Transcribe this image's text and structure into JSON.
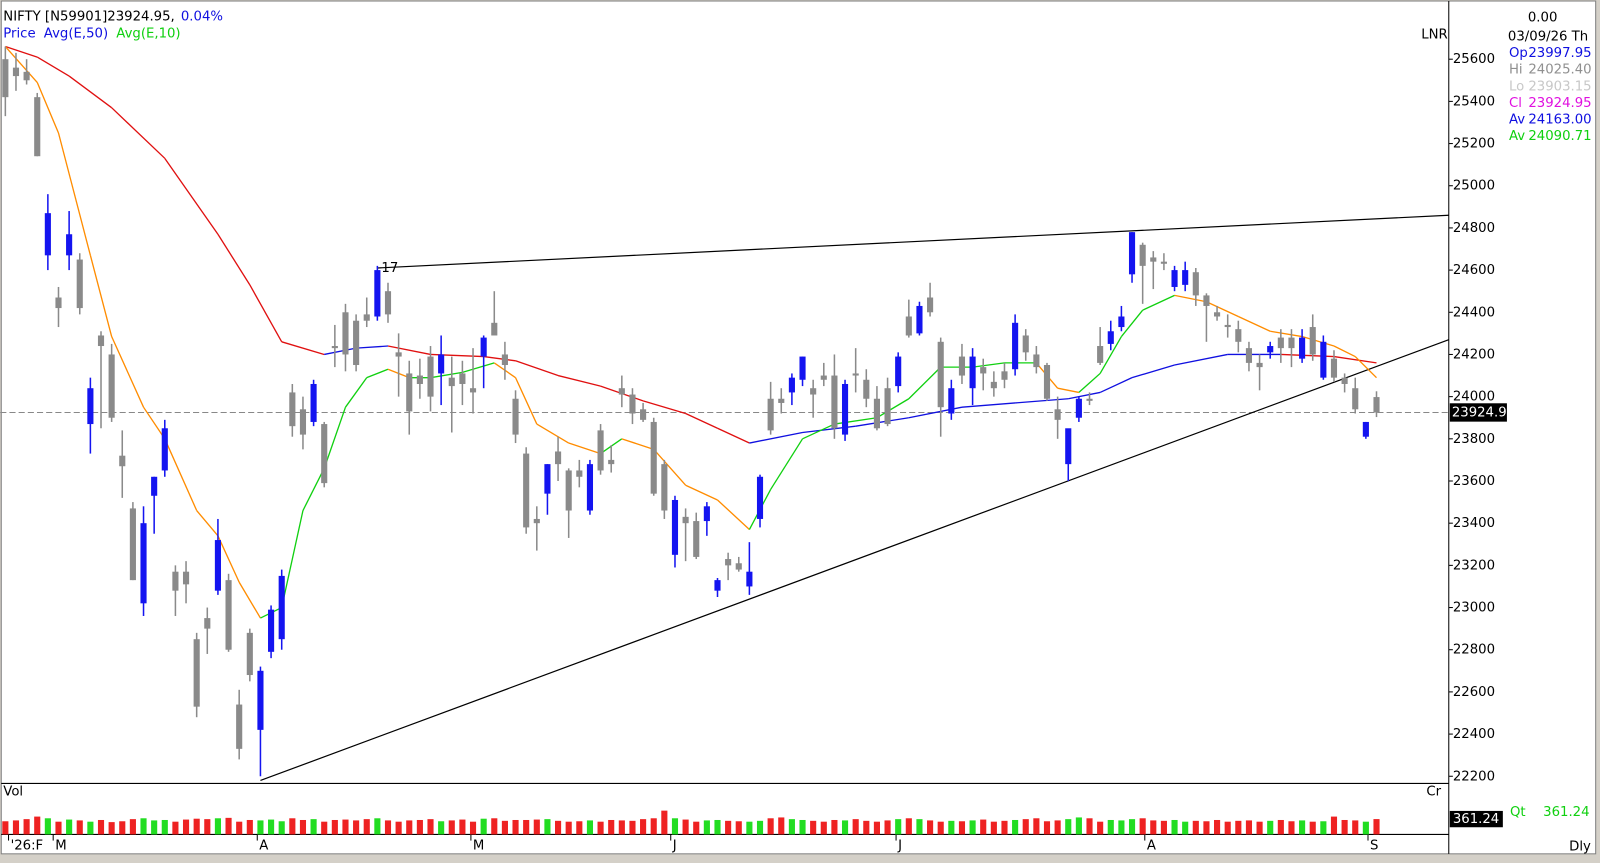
{
  "header": {
    "symbol": "NIFTY [N59901]",
    "price": {
      "value": 23924.95,
      "label": "23924.95,"
    },
    "change": {
      "value": 0.04,
      "label": "0.04%"
    },
    "legend_price": "Price"
  },
  "info_panel": {
    "top": {
      "value": 0,
      "label": "0.00"
    },
    "date": "03/09/26 Th",
    "rows": [
      {
        "label": "Op",
        "value": 23997.95,
        "color": "#1010e0"
      },
      {
        "label": "Hi",
        "value": {
          "value": 24025.4,
          "label": "24025.40"
        },
        "color": "#909090"
      },
      {
        "label": "Lo",
        "value": 23903.15,
        "color": "#c8c8c8"
      },
      {
        "label": "Cl",
        "value": 23924.95,
        "color": "#e010e0"
      },
      {
        "label": "Av",
        "value": {
          "value": 24163,
          "label": "24163.00"
        },
        "color": "#1010e0"
      },
      {
        "label": "Av",
        "value": 24090.71,
        "color": "#10d010"
      }
    ],
    "scale_label": "LNR",
    "vol_scale_label": "Cr",
    "qty_label": "Qt",
    "period": "Dly"
  },
  "chart_data": {
    "type": "candlestick",
    "up_color": "#1414f0",
    "down_color": "#8a8a8a",
    "xlim": [
      -0.48,
      135.8
    ],
    "ylim": [
      22166,
      25842
    ],
    "yticks": [
      22200,
      22400,
      22600,
      22800,
      23000,
      23200,
      23400,
      23600,
      23800,
      24000,
      24200,
      24400,
      24600,
      24800,
      25000,
      25200,
      25400,
      25600
    ],
    "xticks": [
      {
        "value": 0.3,
        "label": "'26:F"
      },
      {
        "value": 4.5,
        "label": "M"
      },
      {
        "value": 23.7,
        "label": "A"
      },
      {
        "value": 43.8,
        "label": "M"
      },
      {
        "value": 62.6,
        "label": "J"
      },
      {
        "value": 83.8,
        "label": "J"
      },
      {
        "value": 107.2,
        "label": "A"
      },
      {
        "value": 128.2,
        "label": "S"
      }
    ],
    "ohlc": [
      [
        25600,
        25660,
        25330,
        25420
      ],
      [
        25560,
        25630,
        25450,
        25520
      ],
      [
        25540,
        25600,
        25480,
        25500
      ],
      [
        25420,
        25440,
        25140,
        25140
      ],
      [
        24670,
        24960,
        24600,
        24870
      ],
      [
        24470,
        24520,
        24330,
        24420
      ],
      [
        24670,
        24880,
        24600,
        24770
      ],
      [
        24650,
        24680,
        24390,
        24420
      ],
      [
        23870,
        24090,
        23730,
        24040
      ],
      [
        24290,
        24310,
        23850,
        24240
      ],
      [
        24200,
        24250,
        23880,
        23900
      ],
      [
        23720,
        23840,
        23520,
        23670
      ],
      [
        23470,
        23500,
        23130,
        23130
      ],
      [
        23020,
        23480,
        22960,
        23400
      ],
      [
        23530,
        23620,
        23350,
        23620
      ],
      [
        23650,
        23890,
        23620,
        23850
      ],
      [
        23170,
        23200,
        22960,
        23080
      ],
      [
        23170,
        23220,
        23020,
        23110
      ],
      [
        22850,
        22880,
        22480,
        22530
      ],
      [
        22950,
        23000,
        22780,
        22900
      ],
      [
        23080,
        23420,
        23060,
        23320
      ],
      [
        23130,
        23160,
        22790,
        22800
      ],
      [
        22540,
        22610,
        22280,
        22330
      ],
      [
        22880,
        22900,
        22650,
        22680
      ],
      [
        22420,
        22720,
        22200,
        22700
      ],
      [
        22790,
        23010,
        22760,
        22990
      ],
      [
        22850,
        23180,
        22800,
        23150
      ],
      [
        24020,
        24060,
        23810,
        23860
      ],
      [
        23940,
        24000,
        23750,
        23820
      ],
      [
        23880,
        24080,
        23860,
        24060
      ],
      [
        23870,
        23880,
        23570,
        23590
      ],
      [
        24240,
        24340,
        24140,
        24230
      ],
      [
        24400,
        24440,
        24120,
        24200
      ],
      [
        24360,
        24390,
        24120,
        24150
      ],
      [
        24390,
        24470,
        24330,
        24360
      ],
      [
        24380,
        24620,
        24360,
        24600
      ],
      [
        24500,
        24540,
        24350,
        24390
      ],
      [
        24210,
        24300,
        24000,
        24190
      ],
      [
        24110,
        24170,
        23820,
        23930
      ],
      [
        24100,
        24180,
        23990,
        24060
      ],
      [
        24190,
        24240,
        23930,
        24000
      ],
      [
        24110,
        24290,
        23960,
        24200
      ],
      [
        24090,
        24190,
        23830,
        24050
      ],
      [
        24110,
        24170,
        23960,
        24060
      ],
      [
        24040,
        24230,
        23920,
        24020
      ],
      [
        24190,
        24290,
        24040,
        24280
      ],
      [
        24350,
        24500,
        24310,
        24290
      ],
      [
        24200,
        24260,
        24080,
        24150
      ],
      [
        23990,
        24030,
        23780,
        23820
      ],
      [
        23730,
        23760,
        23350,
        23380
      ],
      [
        23420,
        23480,
        23270,
        23400
      ],
      [
        23540,
        23680,
        23440,
        23680
      ],
      [
        23740,
        23810,
        23600,
        23680
      ],
      [
        23650,
        23660,
        23330,
        23460
      ],
      [
        23650,
        23700,
        23570,
        23620
      ],
      [
        23460,
        23700,
        23440,
        23680
      ],
      [
        23840,
        23870,
        23630,
        23650
      ],
      [
        23700,
        23770,
        23640,
        23680
      ],
      [
        24040,
        24100,
        23950,
        24010
      ],
      [
        24010,
        24040,
        23870,
        23920
      ],
      [
        23940,
        23970,
        23880,
        23890
      ],
      [
        23880,
        23900,
        23530,
        23540
      ],
      [
        23680,
        23700,
        23420,
        23460
      ],
      [
        23250,
        23530,
        23190,
        23510
      ],
      [
        23430,
        23470,
        23220,
        23400
      ],
      [
        23410,
        23450,
        23230,
        23240
      ],
      [
        23410,
        23500,
        23340,
        23480
      ],
      [
        23080,
        23140,
        23050,
        23130
      ],
      [
        23230,
        23260,
        23130,
        23200
      ],
      [
        23210,
        23240,
        23170,
        23180
      ],
      [
        23100,
        23310,
        23060,
        23170
      ],
      [
        23420,
        23630,
        23380,
        23620
      ],
      [
        23990,
        24070,
        23820,
        23840
      ],
      [
        23990,
        24040,
        23920,
        23970
      ],
      [
        24020,
        24110,
        23960,
        24090
      ],
      [
        24080,
        24190,
        24050,
        24190
      ],
      [
        24040,
        24080,
        23900,
        24010
      ],
      [
        24100,
        24160,
        24050,
        24080
      ],
      [
        24100,
        24200,
        23800,
        23850
      ],
      [
        23820,
        24080,
        23790,
        24060
      ],
      [
        24110,
        24230,
        24020,
        24100
      ],
      [
        24080,
        24130,
        23950,
        23990
      ],
      [
        23990,
        24050,
        23840,
        23850
      ],
      [
        24040,
        24090,
        23860,
        23870
      ],
      [
        24050,
        24210,
        24020,
        24190
      ],
      [
        24380,
        24460,
        24280,
        24290
      ],
      [
        24300,
        24450,
        24290,
        24430
      ],
      [
        24470,
        24540,
        24380,
        24400
      ],
      [
        24260,
        24280,
        23810,
        23950
      ],
      [
        23920,
        24080,
        23890,
        24040
      ],
      [
        24190,
        24250,
        24060,
        24100
      ],
      [
        24040,
        24230,
        23960,
        24190
      ],
      [
        24140,
        24180,
        24030,
        24110
      ],
      [
        24070,
        24120,
        24000,
        24040
      ],
      [
        24120,
        24160,
        24040,
        24080
      ],
      [
        24130,
        24390,
        24100,
        24350
      ],
      [
        24290,
        24320,
        24170,
        24210
      ],
      [
        24200,
        24240,
        24110,
        24140
      ],
      [
        24150,
        24160,
        23980,
        23990
      ],
      [
        23940,
        24000,
        23800,
        23890
      ],
      [
        23680,
        23820,
        23600,
        23850
      ],
      [
        23900,
        24000,
        23880,
        23990
      ],
      [
        23990,
        24020,
        23960,
        23980
      ],
      [
        24240,
        24330,
        24150,
        24160
      ],
      [
        24250,
        24360,
        24220,
        24310
      ],
      [
        24330,
        24430,
        24310,
        24380
      ],
      [
        24580,
        24780,
        24540,
        24780
      ],
      [
        24720,
        24730,
        24440,
        24620
      ],
      [
        24660,
        24690,
        24510,
        24640
      ],
      [
        24640,
        24680,
        24600,
        24630
      ],
      [
        24520,
        24620,
        24500,
        24600
      ],
      [
        24530,
        24640,
        24500,
        24600
      ],
      [
        24590,
        24610,
        24430,
        24480
      ],
      [
        24480,
        24490,
        24260,
        24430
      ],
      [
        24400,
        24430,
        24360,
        24380
      ],
      [
        24340,
        24390,
        24280,
        24330
      ],
      [
        24320,
        24360,
        24210,
        24260
      ],
      [
        24230,
        24260,
        24120,
        24160
      ],
      [
        24160,
        24200,
        24030,
        24140
      ],
      [
        24210,
        24260,
        24180,
        24240
      ],
      [
        24280,
        24320,
        24160,
        24230
      ],
      [
        24280,
        24320,
        24140,
        24230
      ],
      [
        24180,
        24320,
        24160,
        24280
      ],
      [
        24330,
        24390,
        24170,
        24200
      ],
      [
        24090,
        24290,
        24080,
        24260
      ],
      [
        24180,
        24220,
        24070,
        24090
      ],
      [
        24090,
        24110,
        24020,
        24060
      ],
      [
        24040,
        24090,
        23920,
        23940
      ],
      [
        23810,
        23880,
        23800,
        23880
      ],
      [
        23997.95,
        24025.4,
        23903.15,
        23924.95
      ]
    ],
    "series": [
      {
        "name": "Avg(E,50)",
        "color": "#1010e0",
        "falling_color": "#e01010",
        "x": [
          0,
          3,
          6,
          10,
          15,
          20,
          23,
          26,
          30,
          33,
          36,
          40,
          45,
          48,
          52,
          56,
          60,
          64,
          67,
          70,
          75,
          80,
          85,
          90,
          95,
          100,
          103,
          106,
          110,
          115,
          120,
          125,
          129
        ],
        "values": [
          25660,
          25610,
          25520,
          25370,
          25130,
          24770,
          24530,
          24260,
          24200,
          24230,
          24240,
          24200,
          24190,
          24170,
          24100,
          24050,
          23980,
          23920,
          23850,
          23780,
          23830,
          23860,
          23900,
          23950,
          23970,
          23990,
          24020,
          24090,
          24150,
          24200,
          24200,
          24190,
          24160
        ]
      },
      {
        "name": "Avg(E,10)",
        "color": "#10d010",
        "falling_color": "#ff8c00",
        "x": [
          0,
          3,
          5,
          8,
          10,
          13,
          15,
          18,
          20,
          22,
          24,
          26,
          28,
          30,
          32,
          34,
          36,
          38,
          40,
          43,
          46,
          48,
          50,
          53,
          56,
          58,
          61,
          64,
          67,
          70,
          72,
          75,
          78,
          82,
          85,
          88,
          91,
          94,
          97,
          99,
          101,
          103,
          105,
          107,
          110,
          113,
          116,
          119,
          122,
          125,
          127,
          129
        ],
        "values": [
          25660,
          25490,
          25250,
          24670,
          24285,
          23950,
          23800,
          23460,
          23340,
          23120,
          22950,
          23000,
          23460,
          23660,
          23950,
          24090,
          24130,
          24090,
          24090,
          24115,
          24160,
          24090,
          23870,
          23780,
          23730,
          23800,
          23750,
          23580,
          23510,
          23370,
          23560,
          23800,
          23870,
          23900,
          23990,
          24140,
          24140,
          24160,
          24160,
          24040,
          24020,
          24110,
          24285,
          24410,
          24480,
          24450,
          24380,
          24310,
          24285,
          24240,
          24190,
          24090
        ]
      }
    ],
    "trendlines": [
      {
        "x": [
          35,
          135.8
        ],
        "y": [
          24610,
          24860
        ]
      },
      {
        "x": [
          24,
          135.8
        ],
        "y": [
          22180,
          24270
        ]
      }
    ],
    "annotations": [
      {
        "x": 35,
        "y": 24620,
        "text": "17"
      }
    ],
    "last_price": {
      "value": 23924.95,
      "label": "23924.9"
    },
    "volume": {
      "title": "Vol",
      "ylim": [
        0,
        840
      ],
      "up_color": "#22dd22",
      "down_color": "#ee2222",
      "values": [
        310,
        330,
        360,
        420,
        380,
        300,
        350,
        330,
        300,
        340,
        290,
        310,
        360,
        380,
        330,
        340,
        300,
        350,
        370,
        360,
        380,
        390,
        300,
        340,
        330,
        350,
        310,
        380,
        340,
        360,
        300,
        340,
        350,
        330,
        360,
        380,
        330,
        300,
        330,
        340,
        360,
        310,
        330,
        350,
        300,
        370,
        380,
        320,
        340,
        340,
        350,
        360,
        320,
        300,
        310,
        330,
        300,
        340,
        330,
        320,
        360,
        380,
        560,
        380,
        350,
        300,
        330,
        340,
        320,
        310,
        300,
        320,
        380,
        400,
        360,
        340,
        320,
        300,
        340,
        330,
        360,
        320,
        300,
        330,
        360,
        380,
        360,
        330,
        300,
        320,
        310,
        330,
        350,
        300,
        320,
        340,
        360,
        380,
        310,
        330,
        360,
        400,
        380,
        300,
        340,
        330,
        360,
        380,
        330,
        320,
        340,
        300,
        320,
        310,
        340,
        300,
        320,
        330,
        300,
        320,
        340,
        310,
        330,
        300,
        310,
        420,
        340,
        330,
        300,
        361.24
      ]
    }
  }
}
